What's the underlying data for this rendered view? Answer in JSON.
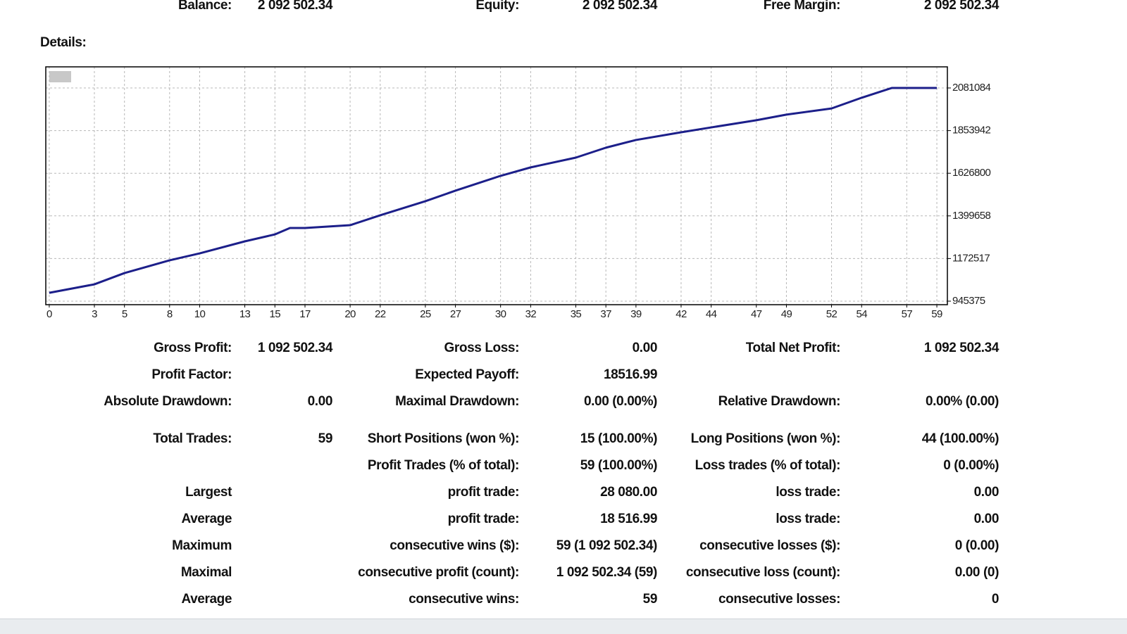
{
  "summary": {
    "label1": "Balance:",
    "value1": "2 092 502.34",
    "label2": "Equity:",
    "value2": "2 092 502.34",
    "label3": "Free Margin:",
    "value3": "2 092 502.34"
  },
  "details_label": "Details:",
  "chart_data": {
    "type": "line",
    "x": [
      0,
      3,
      5,
      8,
      10,
      13,
      15,
      16,
      17,
      20,
      22,
      25,
      27,
      30,
      32,
      35,
      37,
      39,
      42,
      44,
      47,
      49,
      52,
      54,
      56,
      59
    ],
    "series": [
      {
        "color": "#1c1f8a",
        "values": [
          990000,
          1035000,
          1095000,
          1163000,
          1200000,
          1264000,
          1301000,
          1335000,
          1335000,
          1350000,
          1403000,
          1478000,
          1534000,
          1613000,
          1658000,
          1710000,
          1763000,
          1804000,
          1845000,
          1871000,
          1909000,
          1939000,
          1972000,
          2029000,
          2081000,
          2081000
        ]
      }
    ],
    "xlim": [
      -0.23,
      59.7
    ],
    "ylim": [
      926634,
      2193530
    ],
    "xticks": [
      0,
      3,
      5,
      8,
      10,
      13,
      15,
      17,
      20,
      22,
      25,
      27,
      30,
      32,
      35,
      37,
      39,
      42,
      44,
      47,
      49,
      52,
      54,
      57,
      59
    ],
    "yticks": [
      945375,
      1172517,
      1399658,
      1626800,
      1853942,
      2081084
    ],
    "grid": true
  },
  "stats": {
    "rows": [
      {
        "label1": "Gross Profit:",
        "value1": "1 092 502.34",
        "label2": "Gross Loss:",
        "value2": "0.00",
        "label3": "Total Net Profit:",
        "value3": "1 092 502.34"
      },
      {
        "label1": "Profit Factor:",
        "label2": "Expected Payoff:",
        "value2": "18516.99"
      },
      {
        "label1": "Absolute Drawdown:",
        "value1": "0.00",
        "label2": "Maximal Drawdown:",
        "value2": "0.00 (0.00%)",
        "label3": "Relative Drawdown:",
        "value3": "0.00% (0.00)"
      },
      {
        "label1": "Total Trades:",
        "value1": "59",
        "label2": "Short Positions (won %):",
        "value2": "15 (100.00%)",
        "label3": "Long Positions (won %):",
        "value3": "44 (100.00%)"
      },
      {
        "label2": "Profit Trades (% of total):",
        "value2": "59 (100.00%)",
        "label3": "Loss trades (% of total):",
        "value3": "0 (0.00%)"
      },
      {
        "label1": "Largest",
        "label2": "profit trade:",
        "value2": "28 080.00",
        "label3": "loss trade:",
        "value3": "0.00"
      },
      {
        "label1": "Average",
        "label2": "profit trade:",
        "value2": "18 516.99",
        "label3": "loss trade:",
        "value3": "0.00"
      },
      {
        "label1": "Maximum",
        "label2": "consecutive wins ($):",
        "value2": "59 (1 092 502.34)",
        "label3": "consecutive losses ($):",
        "value3": "0 (0.00)"
      },
      {
        "label1": "Maximal",
        "label2": "consecutive profit (count):",
        "value2": "1 092 502.34 (59)",
        "label3": "consecutive loss (count):",
        "value3": "0.00 (0)"
      },
      {
        "label1": "Average",
        "label2": "consecutive wins:",
        "value2": "59",
        "label3": "consecutive losses:",
        "value3": "0"
      }
    ]
  }
}
